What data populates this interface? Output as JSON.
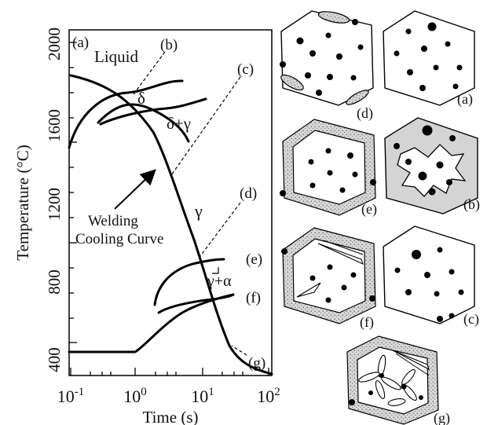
{
  "chart": {
    "ylabel": "Temperature (°C)",
    "xlabel": "Time (s)",
    "y_ticks": [
      "2000",
      "1600",
      "1200",
      "800",
      "400"
    ],
    "x_tick_base": "10",
    "x_tick_exps": [
      "-1",
      "0",
      "1",
      "2"
    ]
  },
  "regions": {
    "liquid": "Liquid",
    "delta": "δ",
    "delta_gamma": "δ+γ",
    "gamma": "γ",
    "gamma_alpha": "γ+α"
  },
  "annotation": {
    "line1": "Welding",
    "line2": "Cooling Curve"
  },
  "curve_markers": [
    "(a)",
    "(b)",
    "(c)",
    "(d)",
    "(e)",
    "(f)",
    "(g)"
  ],
  "microstructures": [
    "(a)",
    "(b)",
    "(c)",
    "(d)",
    "(e)",
    "(f)",
    "(g)"
  ]
}
